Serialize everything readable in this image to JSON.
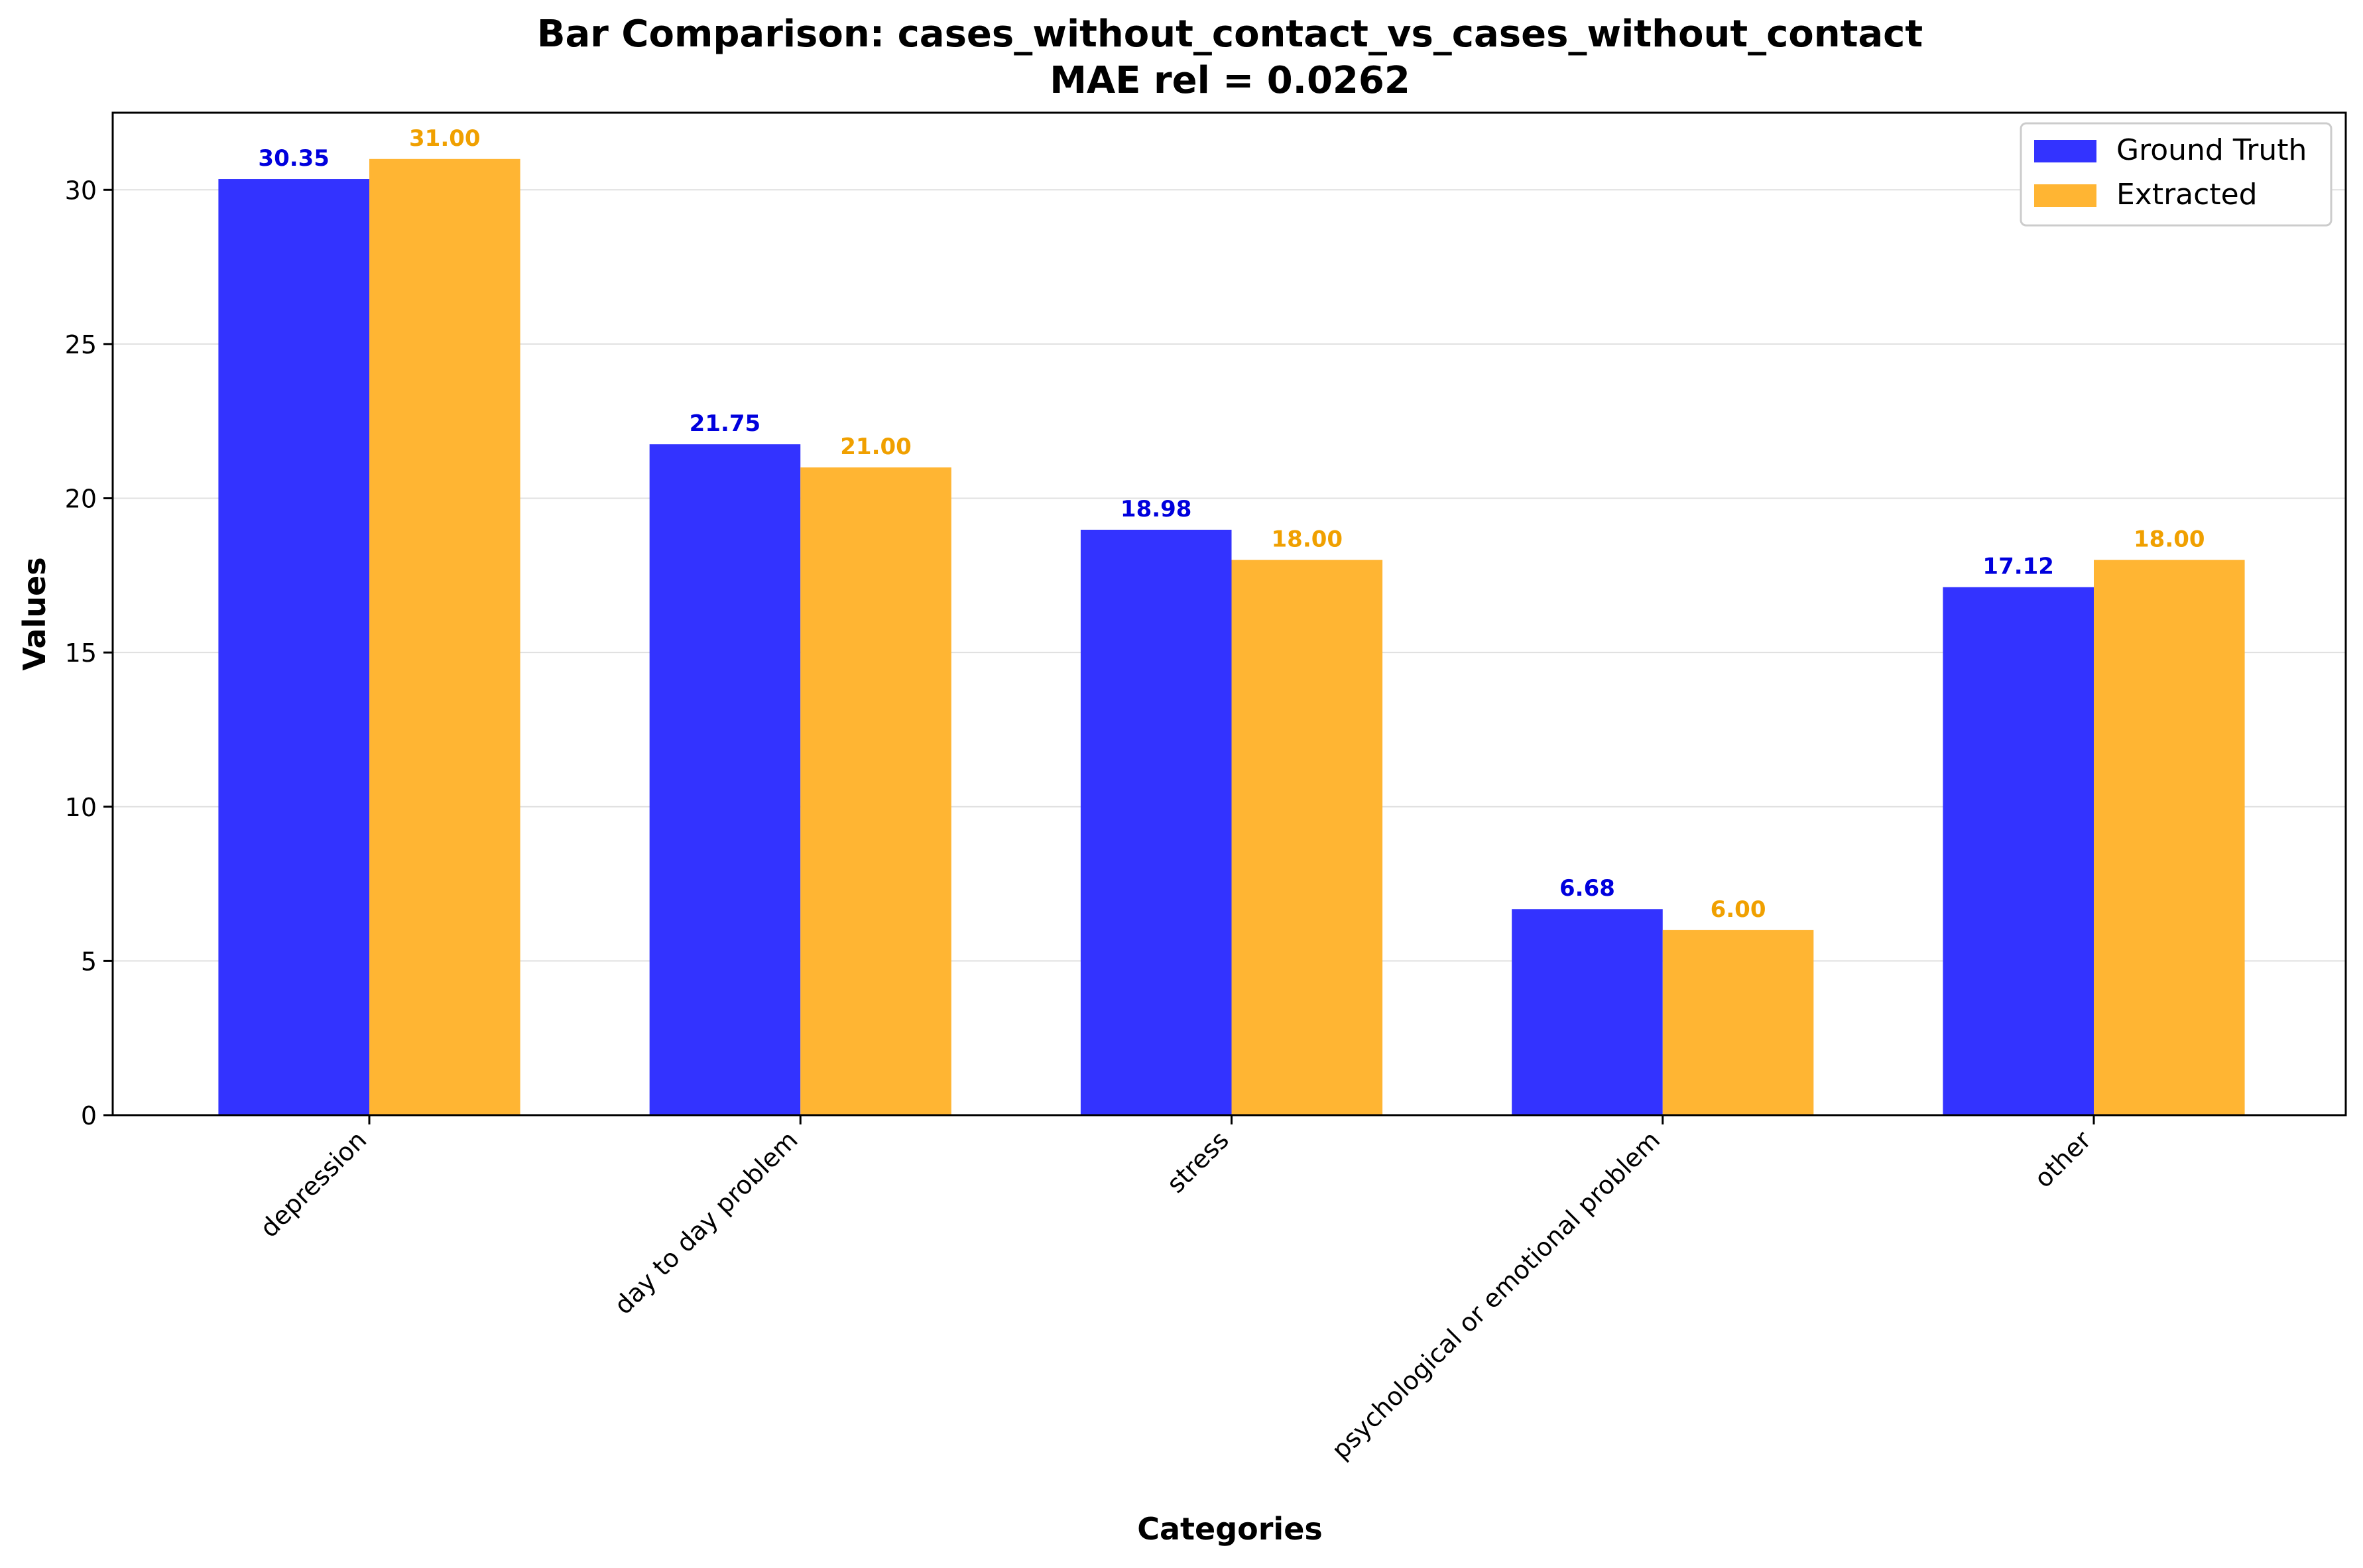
{
  "chart_data": {
    "type": "bar",
    "title": "Bar Comparison: cases_without_contact_vs_cases_without_contact",
    "subtitle": "MAE rel = 0.0262",
    "xlabel": "Categories",
    "ylabel": "Values",
    "categories": [
      "depression",
      "day to day problem",
      "stress",
      "psychological or emotional problem",
      "other"
    ],
    "series": [
      {
        "name": "Ground Truth",
        "color": "#3333ff",
        "label_color": "#0000dd",
        "values": [
          30.35,
          21.75,
          18.98,
          6.68,
          17.12
        ],
        "labels": [
          "30.35",
          "21.75",
          "18.98",
          "6.68",
          "17.12"
        ]
      },
      {
        "name": "Extracted",
        "color": "#ffb533",
        "label_color": "#f0a000",
        "values": [
          31.0,
          21.0,
          18.0,
          6.0,
          18.0
        ],
        "labels": [
          "31.00",
          "21.00",
          "18.00",
          "6.00",
          "18.00"
        ]
      }
    ],
    "ylim": [
      0,
      32.5
    ],
    "yticks": [
      0,
      5,
      10,
      15,
      20,
      25,
      30
    ],
    "grid": "horizontal",
    "legend": "top-right"
  }
}
